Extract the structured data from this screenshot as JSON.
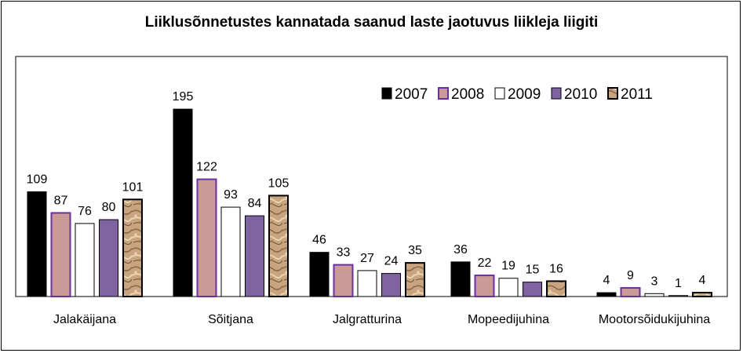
{
  "chart_data": {
    "type": "bar",
    "title": "Liiklusõnnetustes kannatada saanud laste jaotuvus liikleja liigiti",
    "categories": [
      "Jalakäijana",
      "Sõitjana",
      "Jalgratturina",
      "Mopeedijuhina",
      "Mootorsõidukijuhina"
    ],
    "series": [
      {
        "name": "2007",
        "values": [
          109,
          195,
          46,
          36,
          4
        ]
      },
      {
        "name": "2008",
        "values": [
          87,
          122,
          33,
          22,
          9
        ]
      },
      {
        "name": "2009",
        "values": [
          76,
          93,
          27,
          19,
          3
        ]
      },
      {
        "name": "2010",
        "values": [
          80,
          84,
          24,
          15,
          1
        ]
      },
      {
        "name": "2011",
        "values": [
          101,
          105,
          35,
          16,
          4
        ]
      }
    ],
    "xlabel": "",
    "ylabel": "",
    "ylim": [
      0,
      250
    ],
    "grid": false,
    "legend": "top-right",
    "data_labels": true,
    "colors": {
      "2007": {
        "fill": "#000000",
        "stroke": "#000000"
      },
      "2008": {
        "fill": "#c99a96",
        "stroke": "#6a2fa8"
      },
      "2009": {
        "fill": "#ffffff",
        "stroke": "#000000"
      },
      "2010": {
        "fill": "#8064a2",
        "stroke": "#000000"
      },
      "2011": {
        "fill": "#c4a07c",
        "stroke": "#000000",
        "pattern": "sand-texture"
      }
    }
  }
}
